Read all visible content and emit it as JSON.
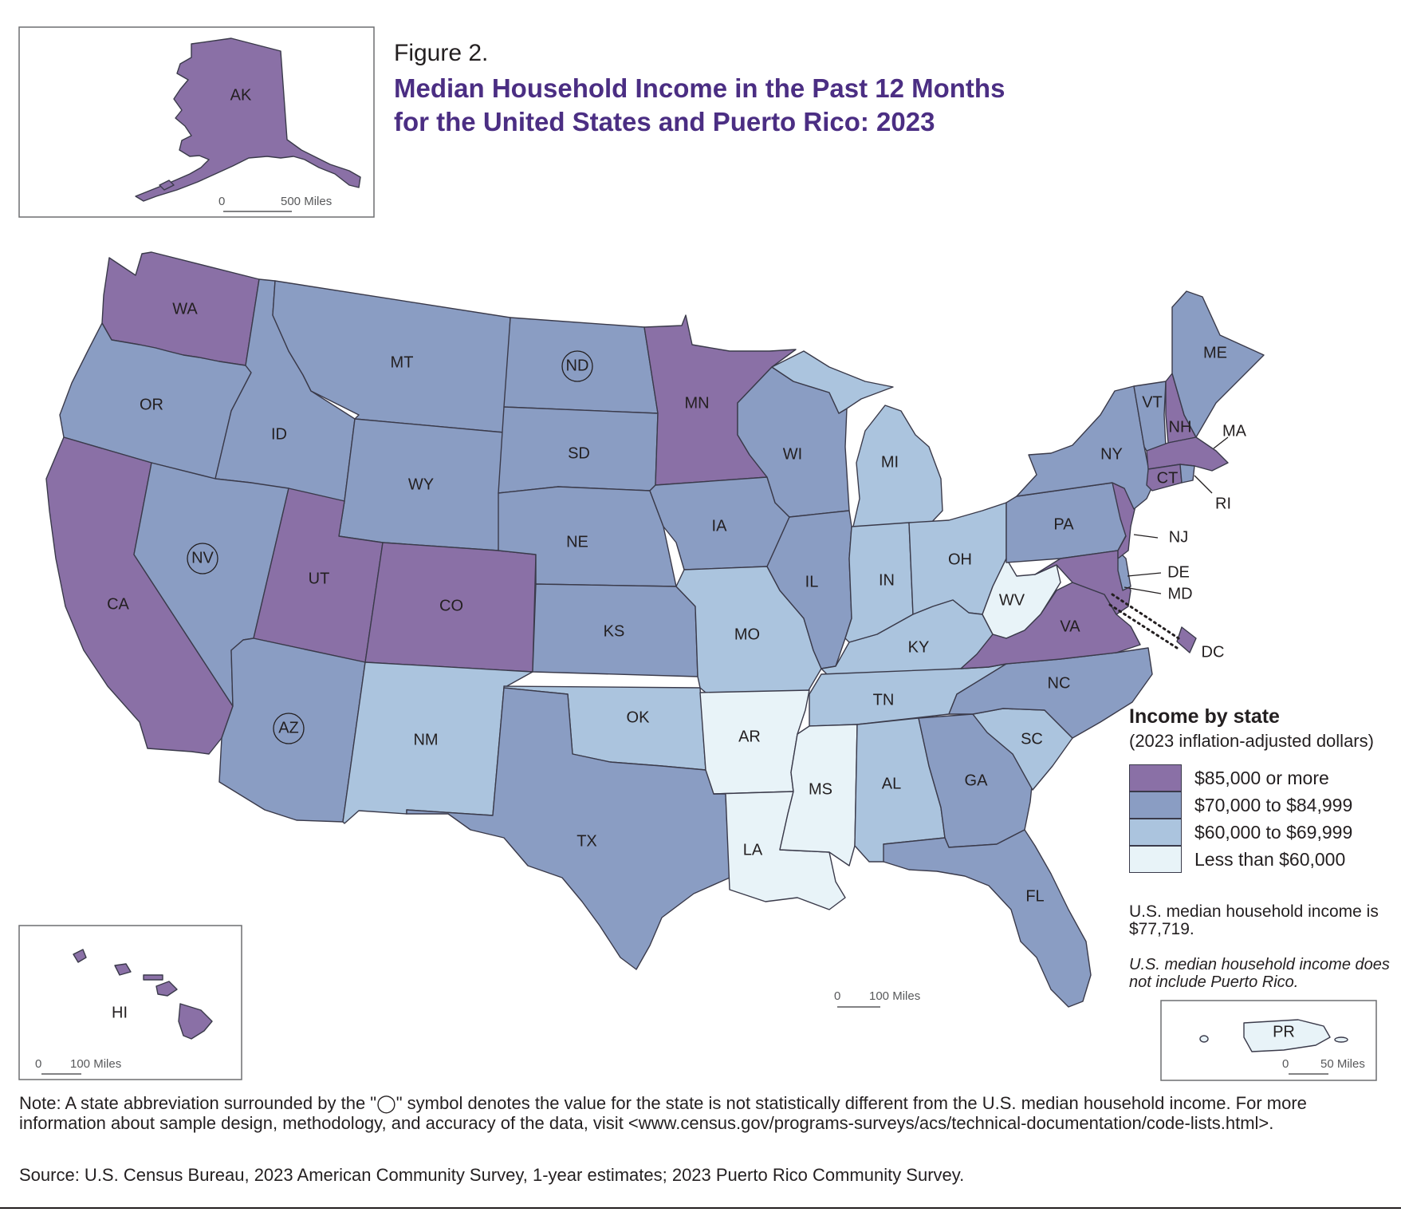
{
  "figure_label": "Figure 2.",
  "title_line1": "Median Household Income in the Past 12 Months",
  "title_line2": "for the United States and Puerto Rico: 2023",
  "colors": {
    "c1": "#8a70a6",
    "c2": "#8a9dc3",
    "c3": "#abc4de",
    "c4": "#e8f3f8",
    "title": "#4b2e83"
  },
  "legend": {
    "title": "Income by state",
    "subtitle": "(2023 inflation-adjusted dollars)",
    "items": [
      {
        "label": "$85,000 or more",
        "color": "#8a70a6"
      },
      {
        "label": "$70,000 to $84,999",
        "color": "#8a9dc3"
      },
      {
        "label": "$60,000 to $69,999",
        "color": "#abc4de"
      },
      {
        "label": "Less than $60,000",
        "color": "#e8f3f8"
      }
    ]
  },
  "us_median": "U.S. median household income is $77,719.",
  "median_note": "U.S. median household income does not include Puerto Rico.",
  "scales": {
    "alaska": {
      "zero": "0",
      "label": "500 Miles"
    },
    "mainland": {
      "zero": "0",
      "label": "100 Miles"
    },
    "hawaii": {
      "zero": "0",
      "label": "100 Miles"
    },
    "puerto_rico": {
      "zero": "0",
      "label": "50 Miles"
    }
  },
  "states": {
    "AK": "AK",
    "HI": "HI",
    "PR": "PR",
    "WA": "WA",
    "OR": "OR",
    "CA": "CA",
    "ID": "ID",
    "NV": "NV",
    "MT": "MT",
    "WY": "WY",
    "UT": "UT",
    "AZ": "AZ",
    "CO": "CO",
    "NM": "NM",
    "ND": "ND",
    "SD": "SD",
    "NE": "NE",
    "KS": "KS",
    "OK": "OK",
    "TX": "TX",
    "MN": "MN",
    "IA": "IA",
    "MO": "MO",
    "AR": "AR",
    "LA": "LA",
    "WI": "WI",
    "IL": "IL",
    "MS": "MS",
    "MI": "MI",
    "IN": "IN",
    "KY": "KY",
    "TN": "TN",
    "AL": "AL",
    "OH": "OH",
    "WV": "WV",
    "GA": "GA",
    "FL": "FL",
    "SC": "SC",
    "NC": "NC",
    "VA": "VA",
    "PA": "PA",
    "NY": "NY",
    "VT": "VT",
    "NH": "NH",
    "ME": "ME",
    "MA": "MA",
    "RI": "RI",
    "CT": "CT",
    "NJ": "NJ",
    "DE": "DE",
    "MD": "MD",
    "DC": "DC"
  },
  "note": "Note: A state abbreviation surrounded by the \"◯\" symbol denotes the value for the state is not statistically different from the U.S. median household income. For more information about sample design, methodology, and accuracy of the data, visit <www.census.gov/programs-surveys/acs/technical-documentation/code-lists.html>.",
  "source": "Source: U.S. Census Bureau, 2023 American Community Survey, 1-year estimates; 2023 Puerto Rico Community Survey."
}
